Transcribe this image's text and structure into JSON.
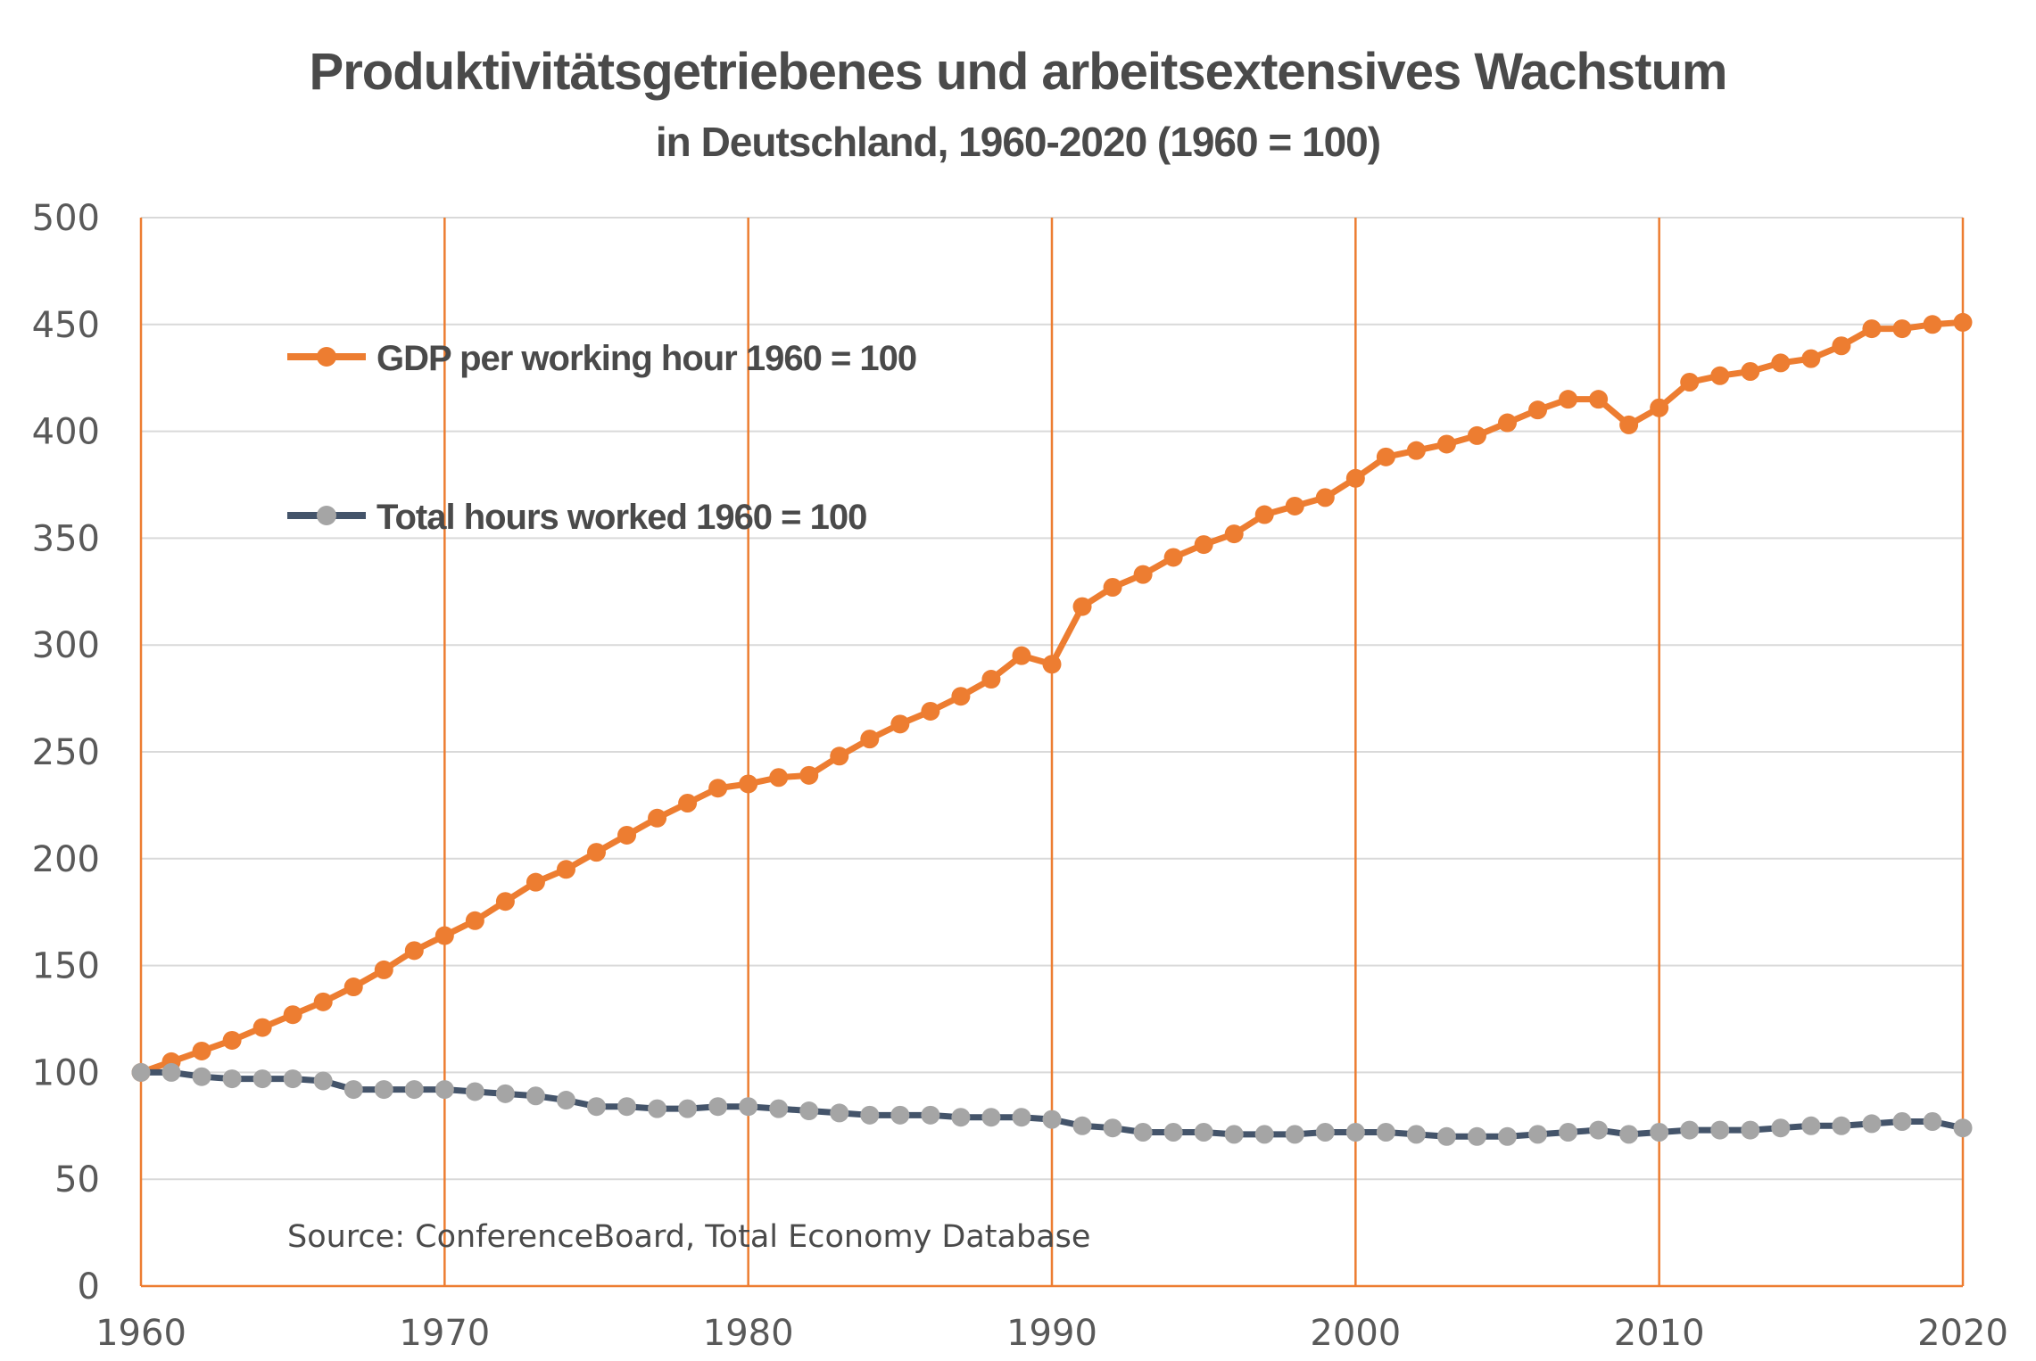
{
  "colors": {
    "gdp": "#ed7d31",
    "hours_line": "#44546a",
    "hours_marker": "#a5a5a5",
    "vertical_grid": "#ed7d31",
    "horizontal_grid": "#d9d9d9",
    "text": "#4a4a4a"
  },
  "chart_data": {
    "type": "line",
    "title": "Produktivitätsgetriebenes und arbeitsextensives Wachstum",
    "subtitle": "in Deutschland, 1960-2020 (1960 = 100)",
    "xlabel": "",
    "ylabel": "",
    "xlim": [
      1960,
      2020
    ],
    "ylim": [
      0,
      500
    ],
    "x_ticks": [
      "1960",
      "1970",
      "1980",
      "1990",
      "2000",
      "2010",
      "2020"
    ],
    "y_ticks": [
      "0",
      "50",
      "100",
      "150",
      "200",
      "250",
      "300",
      "350",
      "400",
      "450",
      "500"
    ],
    "grid": "horizontal gridlines every 50; vertical orange lines every 10 years",
    "legend_position": "top-left",
    "x": [
      1960,
      1961,
      1962,
      1963,
      1964,
      1965,
      1966,
      1967,
      1968,
      1969,
      1970,
      1971,
      1972,
      1973,
      1974,
      1975,
      1976,
      1977,
      1978,
      1979,
      1980,
      1981,
      1982,
      1983,
      1984,
      1985,
      1986,
      1987,
      1988,
      1989,
      1990,
      1991,
      1992,
      1993,
      1994,
      1995,
      1996,
      1997,
      1998,
      1999,
      2000,
      2001,
      2002,
      2003,
      2004,
      2005,
      2006,
      2007,
      2008,
      2009,
      2010,
      2011,
      2012,
      2013,
      2014,
      2015,
      2016,
      2017,
      2018,
      2019,
      2020
    ],
    "series": [
      {
        "name": "GDP per working hour 1960 = 100",
        "values": [
          100,
          105,
          110,
          115,
          121,
          127,
          133,
          140,
          148,
          157,
          164,
          171,
          180,
          189,
          195,
          203,
          211,
          219,
          226,
          233,
          235,
          238,
          239,
          248,
          256,
          263,
          269,
          276,
          284,
          295,
          291,
          318,
          327,
          333,
          341,
          347,
          352,
          361,
          365,
          369,
          378,
          388,
          391,
          394,
          398,
          404,
          410,
          415,
          415,
          403,
          411,
          423,
          426,
          428,
          432,
          434,
          440,
          448,
          448,
          450,
          451
        ]
      },
      {
        "name": "Total hours worked 1960 = 100",
        "values": [
          100,
          100,
          98,
          97,
          97,
          97,
          96,
          92,
          92,
          92,
          92,
          91,
          90,
          89,
          87,
          84,
          84,
          83,
          83,
          84,
          84,
          83,
          82,
          81,
          80,
          80,
          80,
          79,
          79,
          79,
          78,
          75,
          74,
          72,
          72,
          72,
          71,
          71,
          71,
          72,
          72,
          72,
          71,
          70,
          70,
          70,
          71,
          72,
          73,
          71,
          72,
          73,
          73,
          73,
          74,
          75,
          75,
          76,
          77,
          77,
          74
        ]
      }
    ],
    "annotations": [
      "Source: ConferenceBoard, Total Economy Database"
    ]
  }
}
